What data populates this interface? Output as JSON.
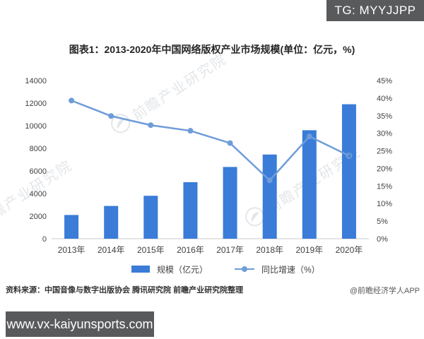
{
  "overlay": {
    "tg_label": "TG: MYYJJPP",
    "site_label": "www.vx-kaiyunsports.com"
  },
  "title": "图表1：2013-2020年中国网络版权产业市场规模(单位：亿元，%)",
  "source_note": "资料来源：中国音像与数字出版协会 腾讯研究院 前瞻产业研究院整理",
  "credit": "@前瞻经济学人APP",
  "watermark_text": "前瞻产业研究院",
  "colors": {
    "bar": "#3A7CD8",
    "line": "#6E9CD9",
    "axis_text": "#404040",
    "baseline": "#c9c9c9",
    "badge_bg": "#595a5c"
  },
  "chart_data": {
    "type": "bar",
    "subtype": "bar+line combo, dual axis",
    "title": "图表1：2013-2020年中国网络版权产业市场规模(单位：亿元，%)",
    "categories": [
      "2013年",
      "2014年",
      "2015年",
      "2016年",
      "2017年",
      "2018年",
      "2019年",
      "2020年"
    ],
    "series": [
      {
        "name": "规模（亿元）",
        "type": "bar",
        "axis": "left",
        "color": "#3A7CD8",
        "values": [
          2100,
          2900,
          3800,
          5000,
          6350,
          7450,
          9600,
          11900
        ]
      },
      {
        "name": "同比增速（%）",
        "type": "line",
        "axis": "right",
        "color": "#6E9CD9",
        "values": [
          39.3,
          34.9,
          32.3,
          30.7,
          27.2,
          16.6,
          29.1,
          23.6
        ]
      }
    ],
    "left_axis": {
      "min": 0,
      "max": 14000,
      "step": 2000,
      "tick_labels": [
        "0",
        "2000",
        "4000",
        "6000",
        "8000",
        "10000",
        "12000",
        "14000"
      ]
    },
    "right_axis": {
      "min": 0,
      "max": 45,
      "step": 5,
      "tick_labels": [
        "0%",
        "5%",
        "10%",
        "15%",
        "20%",
        "25%",
        "30%",
        "35%",
        "40%",
        "45%"
      ]
    },
    "legend": [
      {
        "label": "规模（亿元）",
        "swatch": "bar"
      },
      {
        "label": "同比增速（%）",
        "swatch": "line"
      }
    ],
    "grid": false,
    "legend_position": "bottom"
  }
}
